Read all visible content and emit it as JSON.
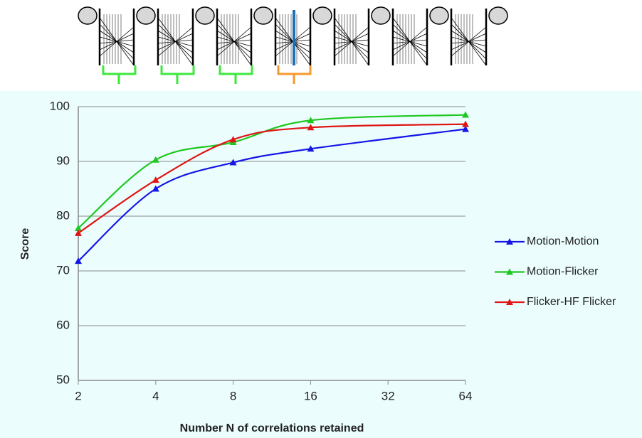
{
  "chart_data": {
    "type": "line",
    "x_label": "Number N of correlations retained",
    "y_label": "Score",
    "x": [
      2,
      4,
      8,
      16,
      64
    ],
    "x_scale": "log2",
    "xlim": [
      2,
      64
    ],
    "xticks": [
      2,
      4,
      8,
      16,
      32,
      64
    ],
    "ylim": [
      50,
      100
    ],
    "yticks": [
      50,
      60,
      70,
      80,
      90,
      100
    ],
    "grid": true,
    "legend": "right",
    "series": [
      {
        "name": "Motion-Motion",
        "color": "#1515e6",
        "values": [
          71.8,
          85.0,
          89.8,
          92.3,
          95.9
        ]
      },
      {
        "name": "Motion-Flicker",
        "color": "#1ec81e",
        "values": [
          77.8,
          90.3,
          93.5,
          97.5,
          98.5
        ]
      },
      {
        "name": "Flicker-HF Flicker",
        "color": "#e01515",
        "values": [
          76.9,
          86.6,
          94.0,
          96.2,
          96.8
        ]
      }
    ]
  }
}
